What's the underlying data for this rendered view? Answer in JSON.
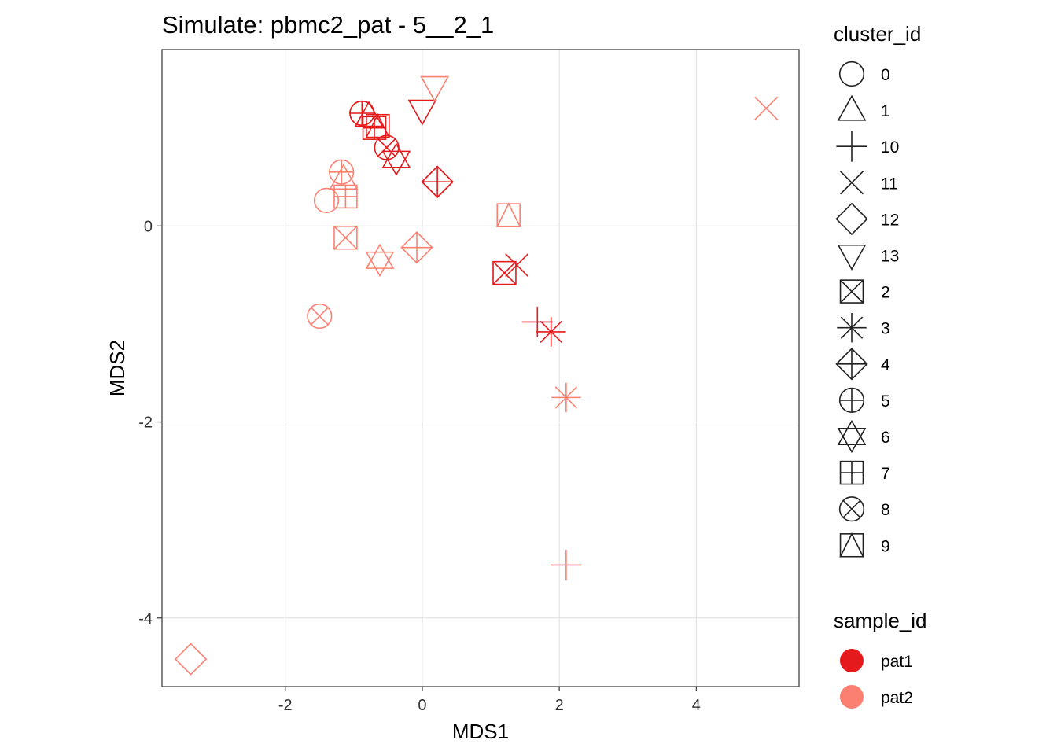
{
  "chart_data": {
    "type": "scatter",
    "title": "Simulate: pbmc2_pat - 5__2_1",
    "xlabel": "MDS1",
    "ylabel": "MDS2",
    "xlim": [
      -3.8,
      5.5
    ],
    "ylim": [
      -4.7,
      1.8
    ],
    "x_ticks": [
      -2,
      0,
      2,
      4
    ],
    "x_tick_labels": [
      "-2",
      "0",
      "2",
      "4"
    ],
    "y_ticks": [
      -4,
      -2,
      0
    ],
    "y_tick_labels": [
      "-4",
      "-2",
      "0"
    ],
    "grid": true,
    "legend_position": "right",
    "shape_legend": {
      "title": "cluster_id",
      "items": [
        {
          "label": "0",
          "shape": "circle"
        },
        {
          "label": "1",
          "shape": "triangle"
        },
        {
          "label": "10",
          "shape": "plus"
        },
        {
          "label": "11",
          "shape": "cross"
        },
        {
          "label": "12",
          "shape": "diamond"
        },
        {
          "label": "13",
          "shape": "triangle-down"
        },
        {
          "label": "2",
          "shape": "square-cross"
        },
        {
          "label": "3",
          "shape": "asterisk"
        },
        {
          "label": "4",
          "shape": "diamond-plus"
        },
        {
          "label": "5",
          "shape": "circle-plus"
        },
        {
          "label": "6",
          "shape": "star-of-david"
        },
        {
          "label": "7",
          "shape": "square-plus"
        },
        {
          "label": "8",
          "shape": "circle-cross"
        },
        {
          "label": "9",
          "shape": "square-triangle"
        }
      ]
    },
    "color_legend": {
      "title": "sample_id",
      "items": [
        {
          "label": "pat1",
          "color": "#E41A1C"
        },
        {
          "label": "pat2",
          "color": "#FB8072"
        }
      ]
    },
    "points": [
      {
        "x": -0.88,
        "y": 1.15,
        "cluster": "0",
        "sample": "pat1"
      },
      {
        "x": -0.78,
        "y": 1.12,
        "cluster": "1",
        "sample": "pat1"
      },
      {
        "x": 1.68,
        "y": -0.98,
        "cluster": "10",
        "sample": "pat1"
      },
      {
        "x": 1.38,
        "y": -0.4,
        "cluster": "11",
        "sample": "pat1"
      },
      {
        "x": 0.22,
        "y": 0.45,
        "cluster": "12",
        "sample": "pat1"
      },
      {
        "x": 0.0,
        "y": 1.18,
        "cluster": "13",
        "sample": "pat1"
      },
      {
        "x": 1.2,
        "y": -0.48,
        "cluster": "2",
        "sample": "pat1"
      },
      {
        "x": 1.88,
        "y": -1.08,
        "cluster": "3",
        "sample": "pat1"
      },
      {
        "x": 0.22,
        "y": 0.45,
        "cluster": "4",
        "sample": "pat1"
      },
      {
        "x": -0.88,
        "y": 1.15,
        "cluster": "5",
        "sample": "pat1"
      },
      {
        "x": -0.38,
        "y": 0.68,
        "cluster": "6",
        "sample": "pat1"
      },
      {
        "x": -0.7,
        "y": 1.0,
        "cluster": "7",
        "sample": "pat1"
      },
      {
        "x": -0.52,
        "y": 0.8,
        "cluster": "8",
        "sample": "pat1"
      },
      {
        "x": -0.65,
        "y": 1.02,
        "cluster": "9",
        "sample": "pat1"
      },
      {
        "x": -1.4,
        "y": 0.26,
        "cluster": "0",
        "sample": "pat2"
      },
      {
        "x": -1.15,
        "y": 0.48,
        "cluster": "1",
        "sample": "pat2"
      },
      {
        "x": 2.1,
        "y": -3.46,
        "cluster": "10",
        "sample": "pat2"
      },
      {
        "x": 5.02,
        "y": 1.2,
        "cluster": "11",
        "sample": "pat2"
      },
      {
        "x": -3.38,
        "y": -4.42,
        "cluster": "12",
        "sample": "pat2"
      },
      {
        "x": 0.18,
        "y": 1.42,
        "cluster": "13",
        "sample": "pat2"
      },
      {
        "x": -1.12,
        "y": -0.12,
        "cluster": "2",
        "sample": "pat2"
      },
      {
        "x": 2.1,
        "y": -1.75,
        "cluster": "3",
        "sample": "pat2"
      },
      {
        "x": -0.08,
        "y": -0.22,
        "cluster": "4",
        "sample": "pat2"
      },
      {
        "x": -1.18,
        "y": 0.55,
        "cluster": "5",
        "sample": "pat2"
      },
      {
        "x": -0.62,
        "y": -0.35,
        "cluster": "6",
        "sample": "pat2"
      },
      {
        "x": -1.12,
        "y": 0.3,
        "cluster": "7",
        "sample": "pat2"
      },
      {
        "x": -1.5,
        "y": -0.92,
        "cluster": "8",
        "sample": "pat2"
      },
      {
        "x": 1.26,
        "y": 0.11,
        "cluster": "9",
        "sample": "pat2"
      }
    ]
  }
}
